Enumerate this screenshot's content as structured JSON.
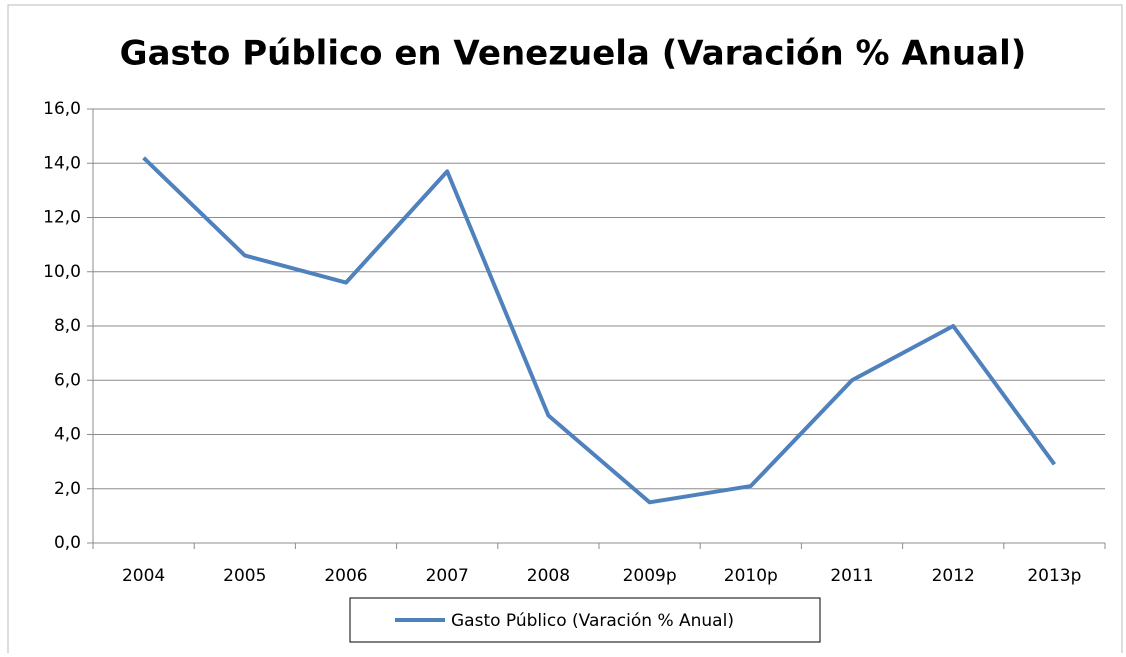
{
  "chart_data": {
    "type": "line",
    "title": "Gasto Público en Venezuela (Varación % Anual)",
    "categories": [
      "2004",
      "2005",
      "2006",
      "2007",
      "2008",
      "2009p",
      "2010p",
      "2011",
      "2012",
      "2013p"
    ],
    "series": [
      {
        "name": "Gasto Público (Varación % Anual)",
        "color": "#4f81bd",
        "values": [
          14.2,
          10.6,
          9.6,
          13.7,
          4.7,
          1.5,
          2.1,
          6.0,
          8.0,
          2.9
        ]
      }
    ],
    "ylim": [
      0,
      16
    ],
    "yticks": [
      {
        "value": 0,
        "label": "0,0"
      },
      {
        "value": 2,
        "label": "2,0"
      },
      {
        "value": 4,
        "label": "4,0"
      },
      {
        "value": 6,
        "label": "6,0"
      },
      {
        "value": 8,
        "label": "8,0"
      },
      {
        "value": 10,
        "label": "10,0"
      },
      {
        "value": 12,
        "label": "12,0"
      },
      {
        "value": 14,
        "label": "14,0"
      },
      {
        "value": 16,
        "label": "16,0"
      }
    ],
    "grid": true,
    "legend": "bottom"
  }
}
